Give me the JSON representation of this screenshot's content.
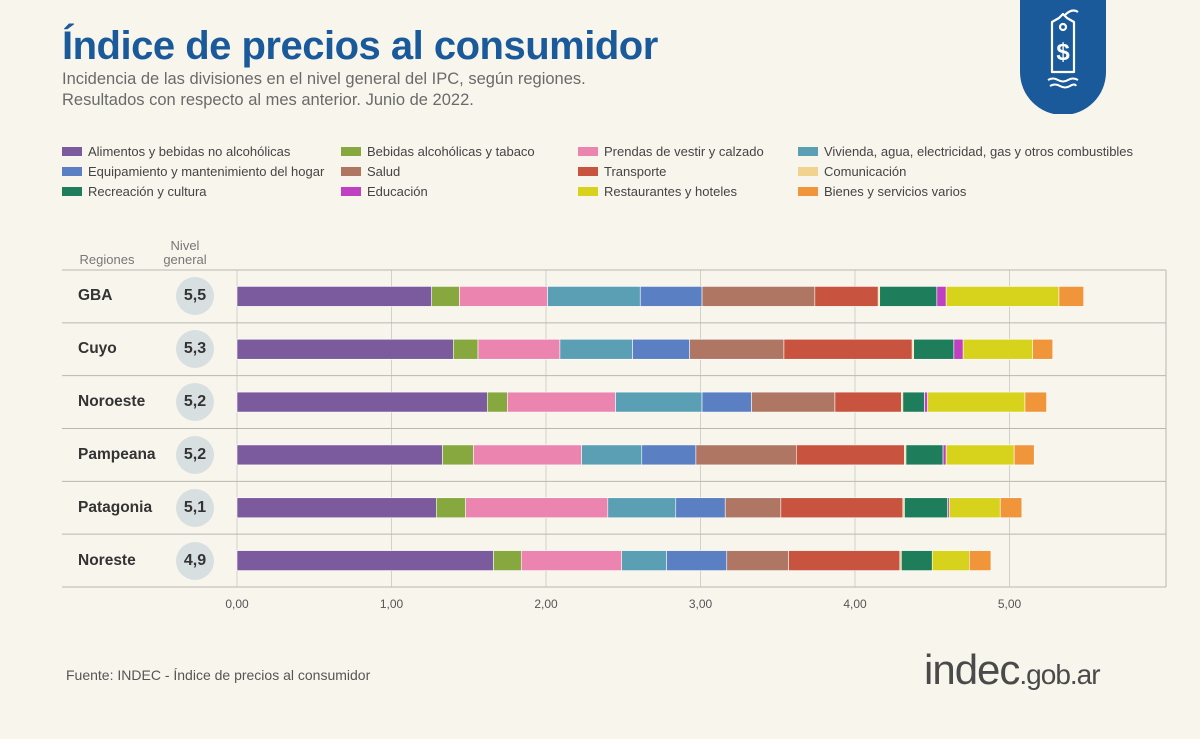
{
  "header": {
    "title": "Índice de precios al consumidor",
    "subtitle_lines": [
      "Incidencia de las divisiones en el nivel general del IPC, según regiones.",
      "Resultados con respecto al mes anterior. Junio de 2022."
    ],
    "logo_icon": "price-tag-dollar-icon",
    "logo_color": "#1a5a9a"
  },
  "table_headers": {
    "regions": "Regiones",
    "level_line1": "Nivel",
    "level_line2": "general"
  },
  "chart_data": {
    "type": "bar",
    "orientation": "horizontal",
    "stacked": true,
    "categories": [
      "GBA",
      "Cuyo",
      "Noroeste",
      "Pampeana",
      "Patagonia",
      "Noreste"
    ],
    "nivel_general": [
      "5,5",
      "5,3",
      "5,2",
      "5,2",
      "5,1",
      "4,9"
    ],
    "xlim": [
      0,
      6
    ],
    "xticks": [
      "0,00",
      "1,00",
      "2,00",
      "3,00",
      "4,00",
      "5,00"
    ],
    "grid": true,
    "legend_position": "top",
    "series": [
      {
        "name": "Alimentos y bebidas no alcohólicas",
        "color": "#7b5a9e",
        "values": [
          1.26,
          1.4,
          1.62,
          1.33,
          1.29,
          1.66
        ]
      },
      {
        "name": "Bebidas alcohólicas y tabaco",
        "color": "#86a83e",
        "values": [
          0.18,
          0.16,
          0.13,
          0.2,
          0.19,
          0.18
        ]
      },
      {
        "name": "Prendas de vestir y calzado",
        "color": "#ec84b0",
        "values": [
          0.57,
          0.53,
          0.7,
          0.7,
          0.92,
          0.65
        ]
      },
      {
        "name": "Vivienda, agua, electricidad, gas y otros combustibles",
        "color": "#5b9fb5",
        "values": [
          0.6,
          0.47,
          0.56,
          0.39,
          0.44,
          0.29
        ]
      },
      {
        "name": "Equipamiento y mantenimiento del hogar",
        "color": "#5a7fc2",
        "values": [
          0.4,
          0.37,
          0.32,
          0.35,
          0.32,
          0.39
        ]
      },
      {
        "name": "Salud",
        "color": "#b07664",
        "values": [
          0.73,
          0.61,
          0.54,
          0.65,
          0.36,
          0.4
        ]
      },
      {
        "name": "Transporte",
        "color": "#c8533f",
        "values": [
          0.41,
          0.83,
          0.43,
          0.7,
          0.79,
          0.72
        ]
      },
      {
        "name": "Comunicación",
        "color": "#f1d28e",
        "values": [
          0.01,
          0.01,
          0.01,
          0.01,
          0.01,
          0.01
        ]
      },
      {
        "name": "Recreación y cultura",
        "color": "#1e7d5a",
        "values": [
          0.37,
          0.26,
          0.14,
          0.24,
          0.28,
          0.2
        ]
      },
      {
        "name": "Educación",
        "color": "#bf40c1",
        "values": [
          0.06,
          0.06,
          0.02,
          0.02,
          0.01,
          0.0
        ]
      },
      {
        "name": "Restaurantes y hoteles",
        "color": "#d7d21c",
        "values": [
          0.73,
          0.45,
          0.63,
          0.44,
          0.33,
          0.24
        ]
      },
      {
        "name": "Bienes y servicios varios",
        "color": "#f0953a",
        "values": [
          0.16,
          0.13,
          0.14,
          0.13,
          0.14,
          0.14
        ]
      }
    ]
  },
  "footer": {
    "source": "Fuente: INDEC - Índice de precios al consumidor",
    "brand_main": "indec",
    "brand_domain": ".gob.ar"
  }
}
